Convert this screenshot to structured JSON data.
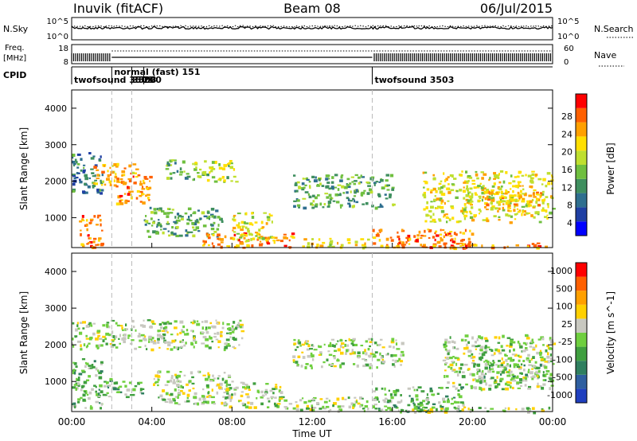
{
  "header": {
    "station": "Inuvik (fitACF)",
    "beam": "Beam 08",
    "date": "06/Jul/2015"
  },
  "summary_panels": {
    "nsky_label": "N.Sky",
    "nsearch_label": "N.Search",
    "nsky_ticks": [
      "10^5",
      "10^0"
    ],
    "nsky_right_ticks": [
      "10^5",
      "10^0"
    ],
    "freq_label": [
      "Freq.",
      "[MHz]"
    ],
    "freq_ticks": [
      "18",
      "8"
    ],
    "nave_label": "Nave",
    "nave_ticks": [
      "60",
      "0"
    ],
    "cpid_label": "CPID"
  },
  "cpid_segments": [
    {
      "label": "twofsound 3503",
      "start_hour": 0.0
    },
    {
      "label": "normal (fast) 151",
      "start_hour": 2.0
    },
    {
      "label": "3503",
      "start_hour": 3.0
    },
    {
      "label": "200",
      "start_hour": 3.6
    },
    {
      "label": "twofsound 3503",
      "start_hour": 15.0
    }
  ],
  "axis": {
    "xlabel": "Time UT",
    "x_ticks": [
      "00:00",
      "04:00",
      "08:00",
      "12:00",
      "16:00",
      "20:00",
      "00:00"
    ],
    "xlim_hours": [
      0,
      24
    ],
    "ylabel": "Slant Range [km]",
    "y_ticks": [
      "1000",
      "2000",
      "3000",
      "4000"
    ],
    "ylim_km": [
      180,
      4500
    ]
  },
  "colorbars": {
    "power": {
      "label": "Power [dB]",
      "ticks": [
        "28",
        "24",
        "20",
        "16",
        "12",
        "8",
        "4"
      ],
      "colors": [
        "#0000ff",
        "#1f3fa3",
        "#2f6f8f",
        "#3f8f5f",
        "#6fbf3f",
        "#bfdf2f",
        "#ffdf00",
        "#ffa000",
        "#ff6000",
        "#ff0000"
      ]
    },
    "velocity": {
      "label": "Velocity [m s^-1]",
      "ticks": [
        "1000",
        "500",
        "100",
        "25",
        "-25",
        "-100",
        "-500",
        "-1000"
      ],
      "colors": [
        "#1f3fbf",
        "#2f5fa0",
        "#2f7f5f",
        "#3f9f3f",
        "#6fcf3f",
        "#c8c8c0",
        "#ffd000",
        "#ffa000",
        "#ff6000",
        "#ff0000"
      ]
    }
  },
  "chart_data": [
    {
      "type": "heatmap",
      "name": "power",
      "xlabel": "Time UT",
      "ylabel": "Slant Range [km]",
      "units": "dB",
      "clim": [
        0,
        30
      ],
      "regions": [
        {
          "t0": 0.0,
          "t1": 1.5,
          "r0": 1700,
          "r1": 2800,
          "value": 10
        },
        {
          "t0": 1.0,
          "t1": 3.2,
          "r0": 1900,
          "r1": 2500,
          "value": 22
        },
        {
          "t0": 2.2,
          "t1": 3.9,
          "r0": 1400,
          "r1": 2200,
          "value": 26
        },
        {
          "t0": 4.5,
          "t1": 5.8,
          "r0": 2100,
          "r1": 2600,
          "value": 14
        },
        {
          "t0": 6.0,
          "t1": 8.2,
          "r0": 2000,
          "r1": 2600,
          "value": 16
        },
        {
          "t0": 0.3,
          "t1": 1.5,
          "r0": 200,
          "r1": 1100,
          "value": 24
        },
        {
          "t0": 3.5,
          "t1": 7.5,
          "r0": 500,
          "r1": 1300,
          "value": 12
        },
        {
          "t0": 6.5,
          "t1": 11.0,
          "r0": 200,
          "r1": 600,
          "value": 26
        },
        {
          "t0": 8.0,
          "t1": 10.0,
          "r0": 400,
          "r1": 1200,
          "value": 20
        },
        {
          "t0": 11.5,
          "t1": 14.8,
          "r0": 200,
          "r1": 450,
          "value": 20
        },
        {
          "t0": 11.0,
          "t1": 16.0,
          "r0": 1300,
          "r1": 2200,
          "value": 12
        },
        {
          "t0": 15.0,
          "t1": 20.0,
          "r0": 200,
          "r1": 700,
          "value": 26
        },
        {
          "t0": 17.5,
          "t1": 24.0,
          "r0": 900,
          "r1": 2300,
          "value": 18
        },
        {
          "t0": 20.5,
          "t1": 23.5,
          "r0": 1200,
          "r1": 1800,
          "value": 22
        },
        {
          "t0": 16.0,
          "t1": 24.0,
          "r0": 180,
          "r1": 320,
          "value": 26
        }
      ]
    },
    {
      "type": "heatmap",
      "name": "velocity",
      "xlabel": "Time UT",
      "ylabel": "Slant Range [km]",
      "units": "m s^-1",
      "clim": [
        -1000,
        1000
      ],
      "regions": [
        {
          "t0": 0.0,
          "t1": 8.5,
          "r0": 1900,
          "r1": 2700,
          "value": 0
        },
        {
          "t0": 0.0,
          "t1": 1.5,
          "r0": 300,
          "r1": 1700,
          "value": -200
        },
        {
          "t0": 1.5,
          "t1": 3.5,
          "r0": 600,
          "r1": 1100,
          "value": -150
        },
        {
          "t0": 4.0,
          "t1": 8.0,
          "r0": 400,
          "r1": 1300,
          "value": 0
        },
        {
          "t0": 7.5,
          "t1": 10.5,
          "r0": 300,
          "r1": 1000,
          "value": 150
        },
        {
          "t0": 10.5,
          "t1": 15.0,
          "r0": 200,
          "r1": 600,
          "value": 0
        },
        {
          "t0": 11.0,
          "t1": 16.5,
          "r0": 1400,
          "r1": 2200,
          "value": 0
        },
        {
          "t0": 15.0,
          "t1": 19.5,
          "r0": 200,
          "r1": 900,
          "value": -200
        },
        {
          "t0": 18.5,
          "t1": 24.0,
          "r0": 800,
          "r1": 2300,
          "value": 0
        },
        {
          "t0": 20.0,
          "t1": 24.0,
          "r0": 1000,
          "r1": 1500,
          "value": -150
        },
        {
          "t0": 15.5,
          "t1": 24.0,
          "r0": 180,
          "r1": 320,
          "value": 100
        }
      ]
    }
  ]
}
